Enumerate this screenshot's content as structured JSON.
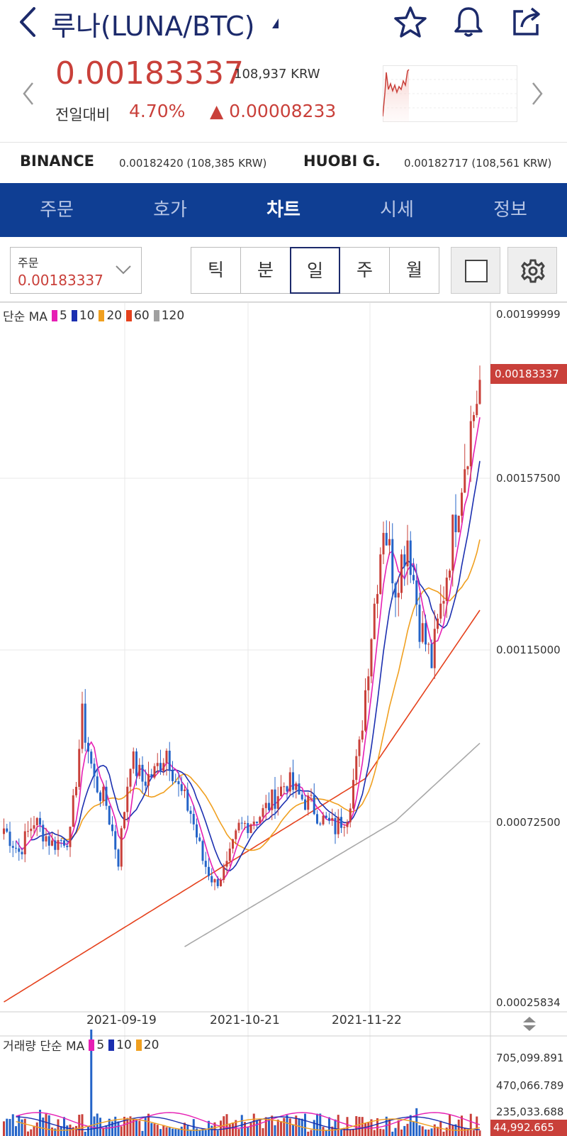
{
  "header": {
    "title": "루나(LUNA/BTC)",
    "price": "0.00183337",
    "price_krw": "108,937 KRW",
    "change_label": "전일대비",
    "change_pct": "4.70%",
    "change_abs": "▲ 0.00008233"
  },
  "exchanges": [
    {
      "name": "BINANCE",
      "value": "0.00182420 (108,385 KRW)"
    },
    {
      "name": "HUOBI G.",
      "value": "0.00182717 (108,561 KRW)"
    }
  ],
  "tabs": [
    {
      "label": "주문",
      "active": false
    },
    {
      "label": "호가",
      "active": false
    },
    {
      "label": "차트",
      "active": true
    },
    {
      "label": "시세",
      "active": false
    },
    {
      "label": "정보",
      "active": false
    }
  ],
  "toolbar": {
    "order_label": "주문",
    "order_value": "0.00183337",
    "periods": [
      {
        "label": "틱",
        "active": false
      },
      {
        "label": "분",
        "active": false
      },
      {
        "label": "일",
        "active": true
      },
      {
        "label": "주",
        "active": false
      },
      {
        "label": "월",
        "active": false
      }
    ]
  },
  "legend": {
    "prefix": "단순 MA",
    "items": [
      {
        "label": "5",
        "color": "#e61fb4"
      },
      {
        "label": "10",
        "color": "#1b2fb0"
      },
      {
        "label": "20",
        "color": "#f0a020"
      },
      {
        "label": "60",
        "color": "#e5411c"
      },
      {
        "label": "120",
        "color": "#a0a0a0"
      }
    ]
  },
  "volume_legend": {
    "prefix": "거래량 단순 MA",
    "items": [
      {
        "label": "5",
        "color": "#e61fb4"
      },
      {
        "label": "10",
        "color": "#1b2fb0"
      },
      {
        "label": "20",
        "color": "#f0a020"
      }
    ]
  },
  "colors": {
    "up": "#c9403a",
    "down": "#2464c8",
    "brand": "#0f3e93"
  },
  "chart_data": {
    "type": "candlestick",
    "price_axis": [
      "0.00199999",
      "0.00157500",
      "0.00115000",
      "0.00072500",
      "0.00025834"
    ],
    "current_price_label": "0.00183337",
    "date_labels": [
      "2021-09-19",
      "2021-10-21",
      "2021-11-22"
    ],
    "volume_axis": [
      "705,099.891",
      "470,066.789",
      "235,033.688"
    ],
    "volume_last_label": "44,992.665"
  }
}
